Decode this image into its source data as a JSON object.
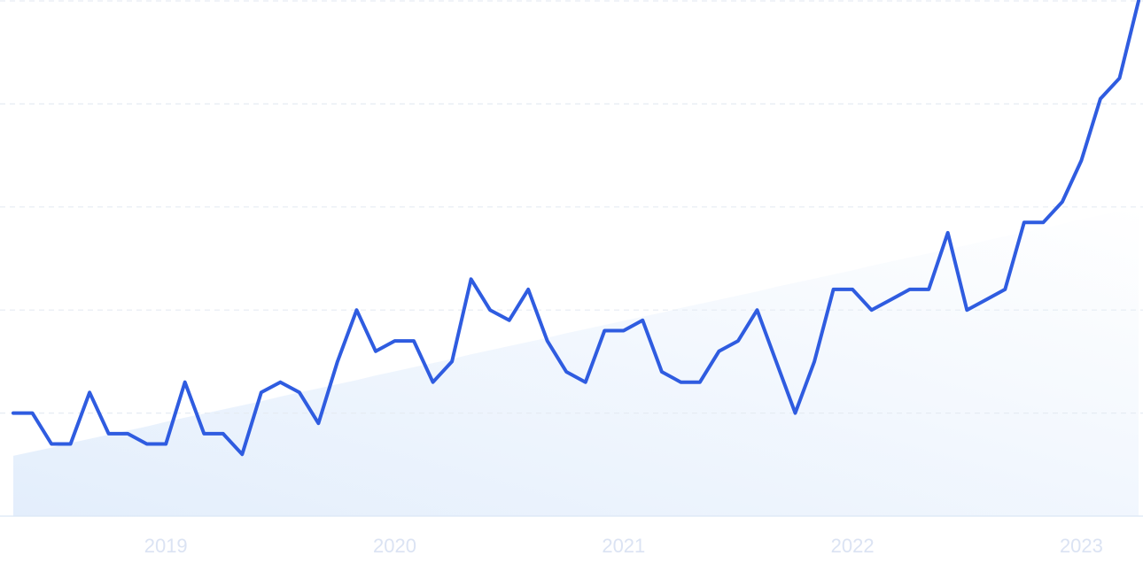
{
  "chart_data": {
    "type": "line",
    "categories": [
      null,
      null,
      null,
      null,
      null,
      null,
      null,
      null,
      "2019",
      null,
      null,
      null,
      null,
      null,
      null,
      null,
      null,
      null,
      null,
      null,
      "2020",
      null,
      null,
      null,
      null,
      null,
      null,
      null,
      null,
      null,
      null,
      null,
      "2021",
      null,
      null,
      null,
      null,
      null,
      null,
      null,
      null,
      null,
      null,
      null,
      "2022",
      null,
      null,
      null,
      null,
      null,
      null,
      null,
      null,
      null,
      null,
      null,
      "2023",
      null,
      null,
      null
    ],
    "series": [
      {
        "color": "#2f5ce0",
        "values": [
          20,
          20,
          14,
          14,
          24,
          16,
          16,
          14,
          14,
          26,
          16,
          16,
          12,
          24,
          26,
          24,
          18,
          30,
          40,
          32,
          34,
          34,
          26,
          30,
          46,
          40,
          38,
          44,
          34,
          28,
          26,
          36,
          36,
          38,
          28,
          26,
          26,
          32,
          34,
          40,
          30,
          20,
          30,
          44,
          44,
          40,
          42,
          44,
          44,
          55,
          40,
          42,
          44,
          57,
          57,
          61,
          69,
          81,
          85,
          100
        ]
      },
      {
        "color": "#e3eefc",
        "area": true,
        "values": [
          11.7,
          12.5,
          13.3,
          14.2,
          15.0,
          15.8,
          16.6,
          17.4,
          18.3,
          19.1,
          19.9,
          20.7,
          21.5,
          22.3,
          23.2,
          24.0,
          24.8,
          25.6,
          26.4,
          27.3,
          28.1,
          28.9,
          29.7,
          30.5,
          31.4,
          32.2,
          33.0,
          33.8,
          34.6,
          35.5,
          36.3,
          37.1,
          37.9,
          38.7,
          39.5,
          40.4,
          41.2,
          42.0,
          42.8,
          43.6,
          44.5,
          45.3,
          46.1,
          46.9,
          47.7,
          48.6,
          49.4,
          50.2,
          51.0,
          51.8,
          52.6,
          53.5,
          54.3,
          55.1,
          55.9,
          56.7,
          57.6,
          58.4,
          59.2,
          60.0
        ]
      }
    ],
    "ylim": [
      0,
      100
    ],
    "yticks": [
      0,
      20,
      40,
      60,
      80,
      100
    ],
    "grid": true
  }
}
